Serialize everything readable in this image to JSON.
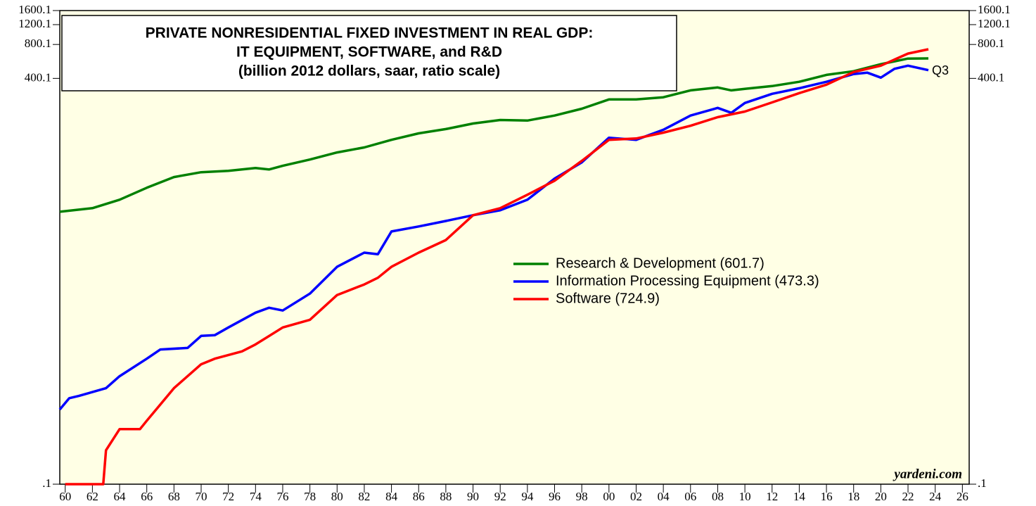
{
  "chart_data": {
    "type": "line",
    "title": [
      "PRIVATE NONRESIDENTIAL FIXED INVESTMENT IN REAL GDP:",
      "IT EQUIPMENT, SOFTWARE, and R&D",
      "(billion 2012 dollars, saar, ratio scale)"
    ],
    "annotations": [
      "Q3",
      "yardeni.com"
    ],
    "log_scale": true,
    "xlim": [
      1959.6,
      2026.5
    ],
    "xticks": [
      {
        "value": 1960,
        "label": "60"
      },
      {
        "value": 1962,
        "label": "62"
      },
      {
        "value": 1964,
        "label": "64"
      },
      {
        "value": 1966,
        "label": "66"
      },
      {
        "value": 1968,
        "label": "68"
      },
      {
        "value": 1970,
        "label": "70"
      },
      {
        "value": 1972,
        "label": "72"
      },
      {
        "value": 1974,
        "label": "74"
      },
      {
        "value": 1976,
        "label": "76"
      },
      {
        "value": 1978,
        "label": "78"
      },
      {
        "value": 1980,
        "label": "80"
      },
      {
        "value": 1982,
        "label": "82"
      },
      {
        "value": 1984,
        "label": "84"
      },
      {
        "value": 1986,
        "label": "86"
      },
      {
        "value": 1988,
        "label": "88"
      },
      {
        "value": 1990,
        "label": "90"
      },
      {
        "value": 1992,
        "label": "92"
      },
      {
        "value": 1994,
        "label": "94"
      },
      {
        "value": 1996,
        "label": "96"
      },
      {
        "value": 1998,
        "label": "98"
      },
      {
        "value": 2000,
        "label": "00"
      },
      {
        "value": 2002,
        "label": "02"
      },
      {
        "value": 2004,
        "label": "04"
      },
      {
        "value": 2006,
        "label": "06"
      },
      {
        "value": 2008,
        "label": "08"
      },
      {
        "value": 2010,
        "label": "10"
      },
      {
        "value": 2012,
        "label": "12"
      },
      {
        "value": 2014,
        "label": "14"
      },
      {
        "value": 2016,
        "label": "16"
      },
      {
        "value": 2018,
        "label": "18"
      },
      {
        "value": 2020,
        "label": "20"
      },
      {
        "value": 2022,
        "label": "22"
      },
      {
        "value": 2024,
        "label": "24"
      },
      {
        "value": 2026,
        "label": "26"
      }
    ],
    "ylim": [
      0.1,
      1600.1
    ],
    "yticks": [
      {
        "value": 0.1,
        "label": ".1"
      },
      400.1,
      800.1,
      1200.1,
      1600.1
    ],
    "series": [
      {
        "name": "Research & Development (601.7)",
        "color": "#008000",
        "x": [
          1959.6,
          1962,
          1964,
          1966,
          1968,
          1970,
          1972,
          1974,
          1975,
          1976,
          1978,
          1980,
          1982,
          1984,
          1986,
          1988,
          1990,
          1992,
          1994,
          1996,
          1998,
          2000,
          2002,
          2004,
          2006,
          2008,
          2009,
          2010,
          2012,
          2014,
          2016,
          2018,
          2020,
          2022,
          2023.5
        ],
        "values": [
          26.2,
          28.2,
          33.5,
          42.8,
          53.2,
          58.8,
          60.5,
          64.1,
          62.2,
          67.0,
          76.2,
          88.1,
          97.5,
          114,
          130,
          142,
          159,
          171,
          169,
          187,
          215,
          260,
          260,
          272,
          313,
          332,
          313,
          323,
          342,
          373,
          430,
          463,
          535,
          600,
          601.7
        ]
      },
      {
        "name": "Information Processing Equipment (473.3)",
        "color": "#0000ff",
        "x": [
          1959.6,
          1960.3,
          1961,
          1963,
          1964,
          1966,
          1967,
          1969,
          1970,
          1971,
          1972,
          1974,
          1975,
          1976,
          1978,
          1980,
          1982,
          1983,
          1984,
          1986,
          1988,
          1990,
          1992,
          1994,
          1996,
          1998,
          2000,
          2002,
          2004,
          2006,
          2008,
          2009,
          2010,
          2012,
          2014,
          2016,
          2018,
          2019,
          2020,
          2021,
          2022,
          2023.5
        ],
        "values": [
          0.46,
          0.58,
          0.607,
          0.711,
          0.909,
          1.3,
          1.57,
          1.62,
          2.07,
          2.1,
          2.46,
          3.33,
          3.68,
          3.48,
          4.92,
          8.5,
          11.35,
          11.0,
          17.5,
          19.4,
          21.7,
          24.4,
          27.0,
          33.5,
          51.6,
          71.9,
          119,
          114,
          140,
          187,
          219,
          198,
          242,
          292,
          327,
          373,
          437,
          450,
          406,
          486,
          519,
          473.3
        ]
      },
      {
        "name": "Software (724.9)",
        "color": "#ff0000",
        "x": [
          1960,
          1962.8,
          1963,
          1964,
          1965.5,
          1966,
          1967,
          1968,
          1970,
          1971,
          1973,
          1974,
          1976,
          1978,
          1980,
          1982,
          1983,
          1984,
          1986,
          1988,
          1990,
          1992,
          1994,
          1996,
          1998,
          2000,
          2002,
          2004,
          2006,
          2008,
          2010,
          2012,
          2014,
          2016,
          2018,
          2020,
          2022,
          2023.5
        ],
        "values": [
          0.1,
          0.1,
          0.2,
          0.308,
          0.308,
          0.366,
          0.51,
          0.711,
          1.16,
          1.3,
          1.51,
          1.74,
          2.46,
          2.88,
          4.78,
          5.93,
          6.8,
          8.51,
          11.35,
          14.7,
          24.4,
          28.2,
          37.1,
          49.4,
          74.1,
          114,
          117,
          132,
          152,
          181,
          203,
          245,
          296,
          352,
          456,
          519,
          664,
          724.9
        ]
      }
    ]
  }
}
